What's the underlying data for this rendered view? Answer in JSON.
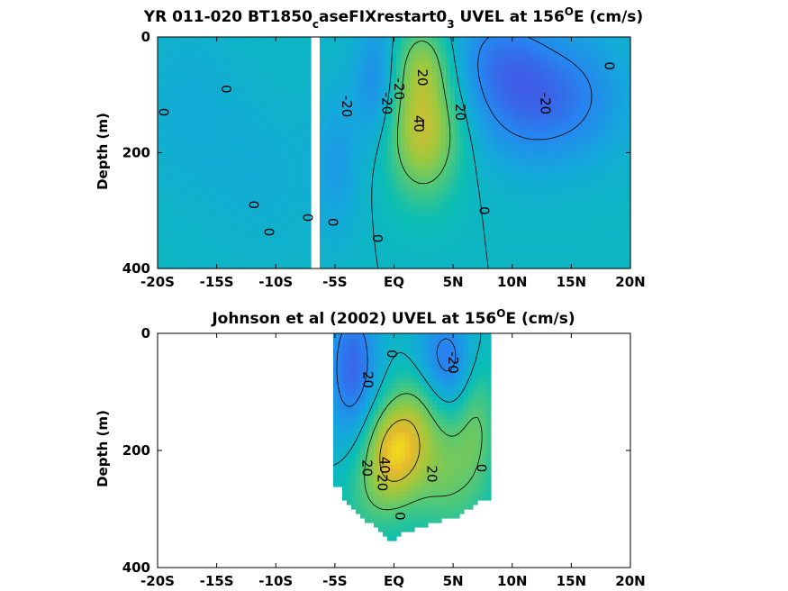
{
  "chart_data": [
    {
      "type": "heatmap",
      "title_main": "YR 011-020 BT1850",
      "title_sub1": "c",
      "title_mid": "aseFIXrestart0",
      "title_sub2": "3",
      "title_tail": " UVEL at 156",
      "title_sup": "O",
      "title_end": "E (cm/s)",
      "ylabel": "Depth (m)",
      "x_ticks": [
        "-20S",
        "-15S",
        "-10S",
        "-5S",
        "EQ",
        "5N",
        "10N",
        "15N",
        "20N"
      ],
      "y_ticks": [
        "0",
        "200",
        "400"
      ],
      "xlim": [
        -20,
        20
      ],
      "ylim": [
        0,
        400
      ],
      "y_reversed": true,
      "colormap": "parula",
      "missing_data_gaps": [
        [
          -7.2,
          -6.4
        ]
      ],
      "contour_labels": [
        {
          "text": "0",
          "x": -19.5,
          "y": 130
        },
        {
          "text": "0",
          "x": -14.2,
          "y": 90
        },
        {
          "text": "0",
          "x": -11.9,
          "y": 290
        },
        {
          "text": "0",
          "x": -10.6,
          "y": 337
        },
        {
          "text": "0",
          "x": -7.3,
          "y": 312
        },
        {
          "text": "0",
          "x": -5.2,
          "y": 320
        },
        {
          "text": "-20",
          "x": -4.0,
          "y": 120
        },
        {
          "text": "-20",
          "x": -0.6,
          "y": 115
        },
        {
          "text": "-20",
          "x": 0.4,
          "y": 90
        },
        {
          "text": "0",
          "x": -1.4,
          "y": 348
        },
        {
          "text": "20",
          "x": 2.4,
          "y": 70
        },
        {
          "text": "40",
          "x": 2.1,
          "y": 150
        },
        {
          "text": "20",
          "x": 5.6,
          "y": 130
        },
        {
          "text": "0",
          "x": 7.6,
          "y": 300
        },
        {
          "text": "-20",
          "x": 12.8,
          "y": 115
        },
        {
          "text": "0",
          "x": 18.2,
          "y": 50
        }
      ],
      "field_features": [
        {
          "x": 2.5,
          "y": 160,
          "v": 40,
          "sx": 2.2,
          "sy": 80
        },
        {
          "x": 2.5,
          "y": 40,
          "v": 20,
          "sx": 1.6,
          "sy": 50
        },
        {
          "x": -1.5,
          "y": 80,
          "v": -20,
          "sx": 1.3,
          "sy": 80
        },
        {
          "x": 11.5,
          "y": 110,
          "v": -24,
          "sx": 3.5,
          "sy": 80
        },
        {
          "x": 8.5,
          "y": 30,
          "v": -16,
          "sx": 3.0,
          "sy": 70
        },
        {
          "x": 16.5,
          "y": 100,
          "v": -12,
          "sx": 3.0,
          "sy": 80
        },
        {
          "x": -4.8,
          "y": 220,
          "v": -12,
          "sx": 1.3,
          "sy": 90
        },
        {
          "x": -17.5,
          "y": 120,
          "v": -6,
          "sx": 3.0,
          "sy": 110
        },
        {
          "x": -11,
          "y": 240,
          "v": -5,
          "sx": 3.5,
          "sy": 110
        }
      ]
    },
    {
      "type": "heatmap",
      "title_main": "Johnson et al (2002) UVEL at 156",
      "title_sup": "O",
      "title_end": "E (cm/s)",
      "ylabel": "Depth (m)",
      "x_ticks": [
        "-20S",
        "-15S",
        "-10S",
        "-5S",
        "EQ",
        "5N",
        "10N",
        "15N",
        "20N"
      ],
      "y_ticks": [
        "0",
        "200",
        "400"
      ],
      "xlim": [
        -20,
        20
      ],
      "ylim": [
        0,
        400
      ],
      "y_reversed": true,
      "colormap": "parula",
      "data_region": {
        "x": [
          -5,
          8
        ],
        "bottom_depth": [
          [
            -5,
            262
          ],
          [
            -4.5,
            262
          ],
          [
            -4.5,
            282
          ],
          [
            -3.8,
            290
          ],
          [
            -3.5,
            300
          ],
          [
            -3,
            312
          ],
          [
            -2.5,
            318
          ],
          [
            -2,
            326
          ],
          [
            -1.5,
            330
          ],
          [
            -1,
            338
          ],
          [
            -0.5,
            350
          ],
          [
            0,
            355
          ],
          [
            0.5,
            342
          ],
          [
            1.2,
            338
          ],
          [
            1.8,
            335
          ],
          [
            2.5,
            330
          ],
          [
            3,
            326
          ],
          [
            3.5,
            322
          ],
          [
            4,
            318
          ],
          [
            4.5,
            316
          ],
          [
            5,
            315
          ],
          [
            5.5,
            312
          ],
          [
            6,
            305
          ],
          [
            6.5,
            298
          ],
          [
            7,
            290
          ],
          [
            7.5,
            284
          ],
          [
            8,
            284
          ]
        ]
      },
      "contour_labels": [
        {
          "text": "0",
          "x": -0.2,
          "y": 35
        },
        {
          "text": "-20",
          "x": -2.2,
          "y": 75
        },
        {
          "text": "-20",
          "x": 5.0,
          "y": 50
        },
        {
          "text": "20",
          "x": -2.3,
          "y": 230
        },
        {
          "text": "40",
          "x": -0.8,
          "y": 225
        },
        {
          "text": "20",
          "x": -1.0,
          "y": 255
        },
        {
          "text": "20",
          "x": 3.2,
          "y": 240
        },
        {
          "text": "0",
          "x": 7.4,
          "y": 230
        },
        {
          "text": "0",
          "x": 0.5,
          "y": 312
        }
      ],
      "field_features": [
        {
          "x": 0.0,
          "y": 200,
          "v": 45,
          "sx": 1.8,
          "sy": 60
        },
        {
          "x": 4.5,
          "y": 230,
          "v": 22,
          "sx": 2.2,
          "sy": 80
        },
        {
          "x": 2.0,
          "y": 120,
          "v": 16,
          "sx": 1.5,
          "sy": 60
        },
        {
          "x": 7.0,
          "y": 120,
          "v": 18,
          "sx": 1.2,
          "sy": 90
        },
        {
          "x": -3.5,
          "y": 60,
          "v": -30,
          "sx": 1.5,
          "sy": 90
        },
        {
          "x": 4.5,
          "y": 50,
          "v": -28,
          "sx": 2.0,
          "sy": 60
        },
        {
          "x": -2.0,
          "y": 280,
          "v": 12,
          "sx": 2.0,
          "sy": 60
        }
      ]
    }
  ]
}
